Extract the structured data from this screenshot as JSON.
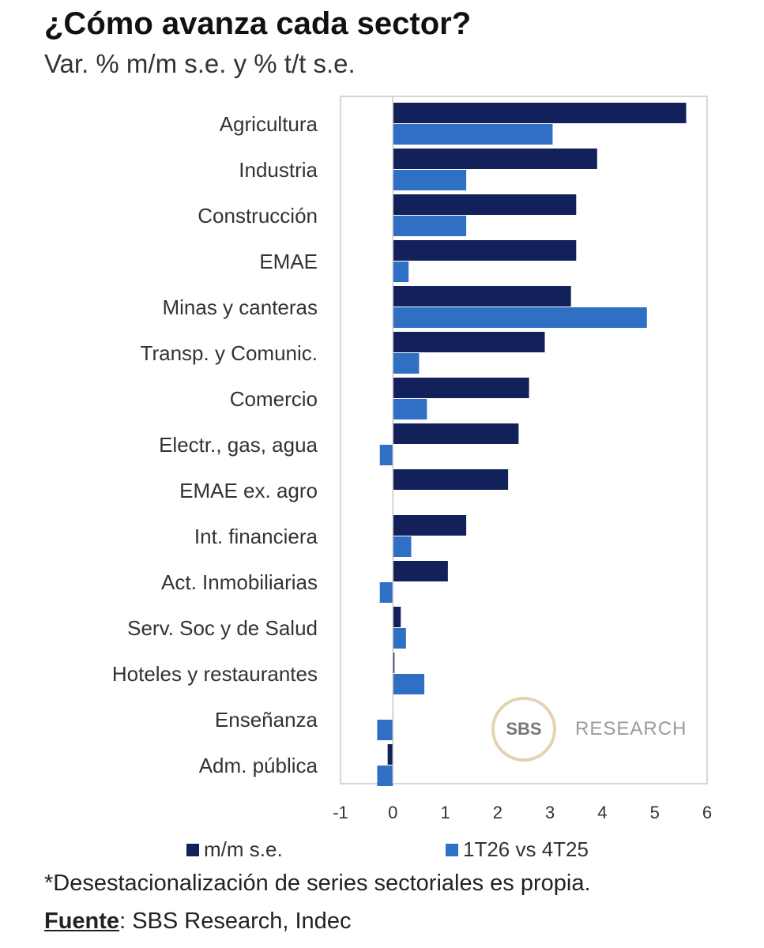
{
  "title": "¿Cómo avanza cada sector?",
  "subtitle": "Var. % m/m s.e. y % t/t s.e.",
  "footnote": "*Desestacionalización de series sectoriales es propia.",
  "source": {
    "key": "Fuente",
    "sep": ": ",
    "value": "SBS Research, Indec"
  },
  "watermark": {
    "seal": "SBS",
    "word": "RESEARCH"
  },
  "colors": {
    "mm": "#13215a",
    "tt": "#2f6fc4",
    "axis": "#c8c8c8"
  },
  "chart_data": {
    "type": "bar",
    "orientation": "horizontal",
    "categories": [
      "Agricultura",
      "Industria",
      "Construcción",
      "EMAE",
      "Minas y canteras",
      "Transp. y Comunic.",
      "Comercio",
      "Electr., gas, agua",
      "EMAE ex. agro",
      "Int. financiera",
      "Act. Inmobiliarias",
      "Serv. Soc y de Salud",
      "Hoteles y restaurantes",
      "Enseñanza",
      "Adm. pública"
    ],
    "series": [
      {
        "name": "m/m s.e.",
        "values": [
          5.6,
          3.9,
          3.5,
          3.5,
          3.4,
          2.9,
          2.6,
          2.4,
          2.2,
          1.4,
          1.05,
          0.15,
          0.03,
          0.0,
          -0.1
        ]
      },
      {
        "name": "1T26 vs 4T25",
        "values": [
          3.05,
          1.4,
          1.4,
          0.3,
          4.85,
          0.5,
          0.65,
          -0.25,
          0.0,
          0.35,
          -0.25,
          0.25,
          0.6,
          -0.3,
          -0.3
        ]
      }
    ],
    "xlim": [
      -1,
      6
    ],
    "xticks": [
      -1,
      0,
      1,
      2,
      3,
      4,
      5,
      6
    ],
    "xtick_labels": [
      "-1",
      "0",
      "1",
      "2",
      "3",
      "4",
      "5",
      "6"
    ],
    "legend_position": "bottom",
    "grid": false
  }
}
